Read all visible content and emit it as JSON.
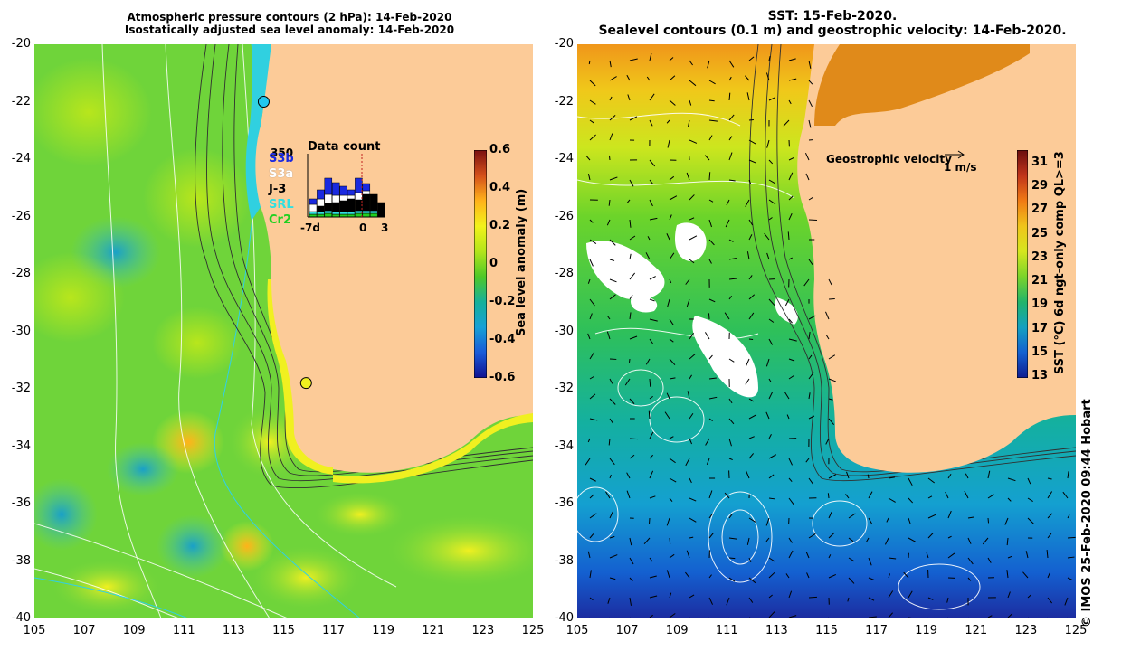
{
  "left_panel": {
    "title_line1": "Atmospheric pressure contours (2 hPa): 14-Feb-2020",
    "title_line2": "Isostatically adjusted sea level anomaly: 14-Feb-2020",
    "colorbar": {
      "label": "Sea level anomaly (m)",
      "ticks": [
        "0.6",
        "0.4",
        "0.2",
        "0",
        "-0.2",
        "-0.4",
        "-0.6"
      ],
      "colors": [
        "#7a1010",
        "#d4501a",
        "#ffb21a",
        "#f2f21a",
        "#b4e51a",
        "#4ec828",
        "#16b09a",
        "#17a0d6",
        "#1a5ad8",
        "#101090"
      ]
    },
    "data_count": {
      "title": "Data count",
      "max_label": "350",
      "x_labels": [
        "-7d",
        "0",
        "3"
      ],
      "satellites": [
        {
          "name": "S3b",
          "color": "#1a2ae0"
        },
        {
          "name": "S3a",
          "color": "#ffffff"
        },
        {
          "name": "J-3",
          "color": "#000000"
        },
        {
          "name": "SRL",
          "color": "#30e0e0"
        },
        {
          "name": "Cr2",
          "color": "#20d020"
        }
      ]
    },
    "station_markers": [
      {
        "name": "station-north",
        "lon": 114.2,
        "lat": -22.0,
        "color": "#22c8f0"
      },
      {
        "name": "station-south",
        "lon": 115.9,
        "lat": -31.8,
        "color": "#f0f020"
      }
    ]
  },
  "right_panel": {
    "title_line1": "SST: 15-Feb-2020.",
    "title_line2": "Sealevel contours (0.1 m) and geostrophic velocity: 14-Feb-2020.",
    "velocity_legend": {
      "label": "Geostrophic velocity",
      "unit": "1 m/s"
    },
    "colorbar": {
      "label": "SST (°C) 6d ngt-only comp QL>=3",
      "ticks": [
        "31",
        "29",
        "27",
        "25",
        "23",
        "21",
        "19",
        "17",
        "15",
        "13"
      ],
      "colors": [
        "#6a0e0e",
        "#c0341a",
        "#f07a14",
        "#f0c41a",
        "#d6e61e",
        "#7ad42a",
        "#22b46a",
        "#14a0c0",
        "#1460d0",
        "#101c90"
      ]
    }
  },
  "axes": {
    "lat_ticks": [
      "-20",
      "-22",
      "-24",
      "-26",
      "-28",
      "-30",
      "-32",
      "-34",
      "-36",
      "-38",
      "-40"
    ],
    "lon_ticks": [
      "105",
      "107",
      "109",
      "111",
      "113",
      "115",
      "117",
      "119",
      "121",
      "123",
      "125"
    ],
    "lat_range": [
      -40,
      -20
    ],
    "lon_range": [
      105,
      125
    ]
  },
  "land_color": "#fccb98",
  "credit": "© IMOS 25-Feb-2020 09:44 Hobart"
}
